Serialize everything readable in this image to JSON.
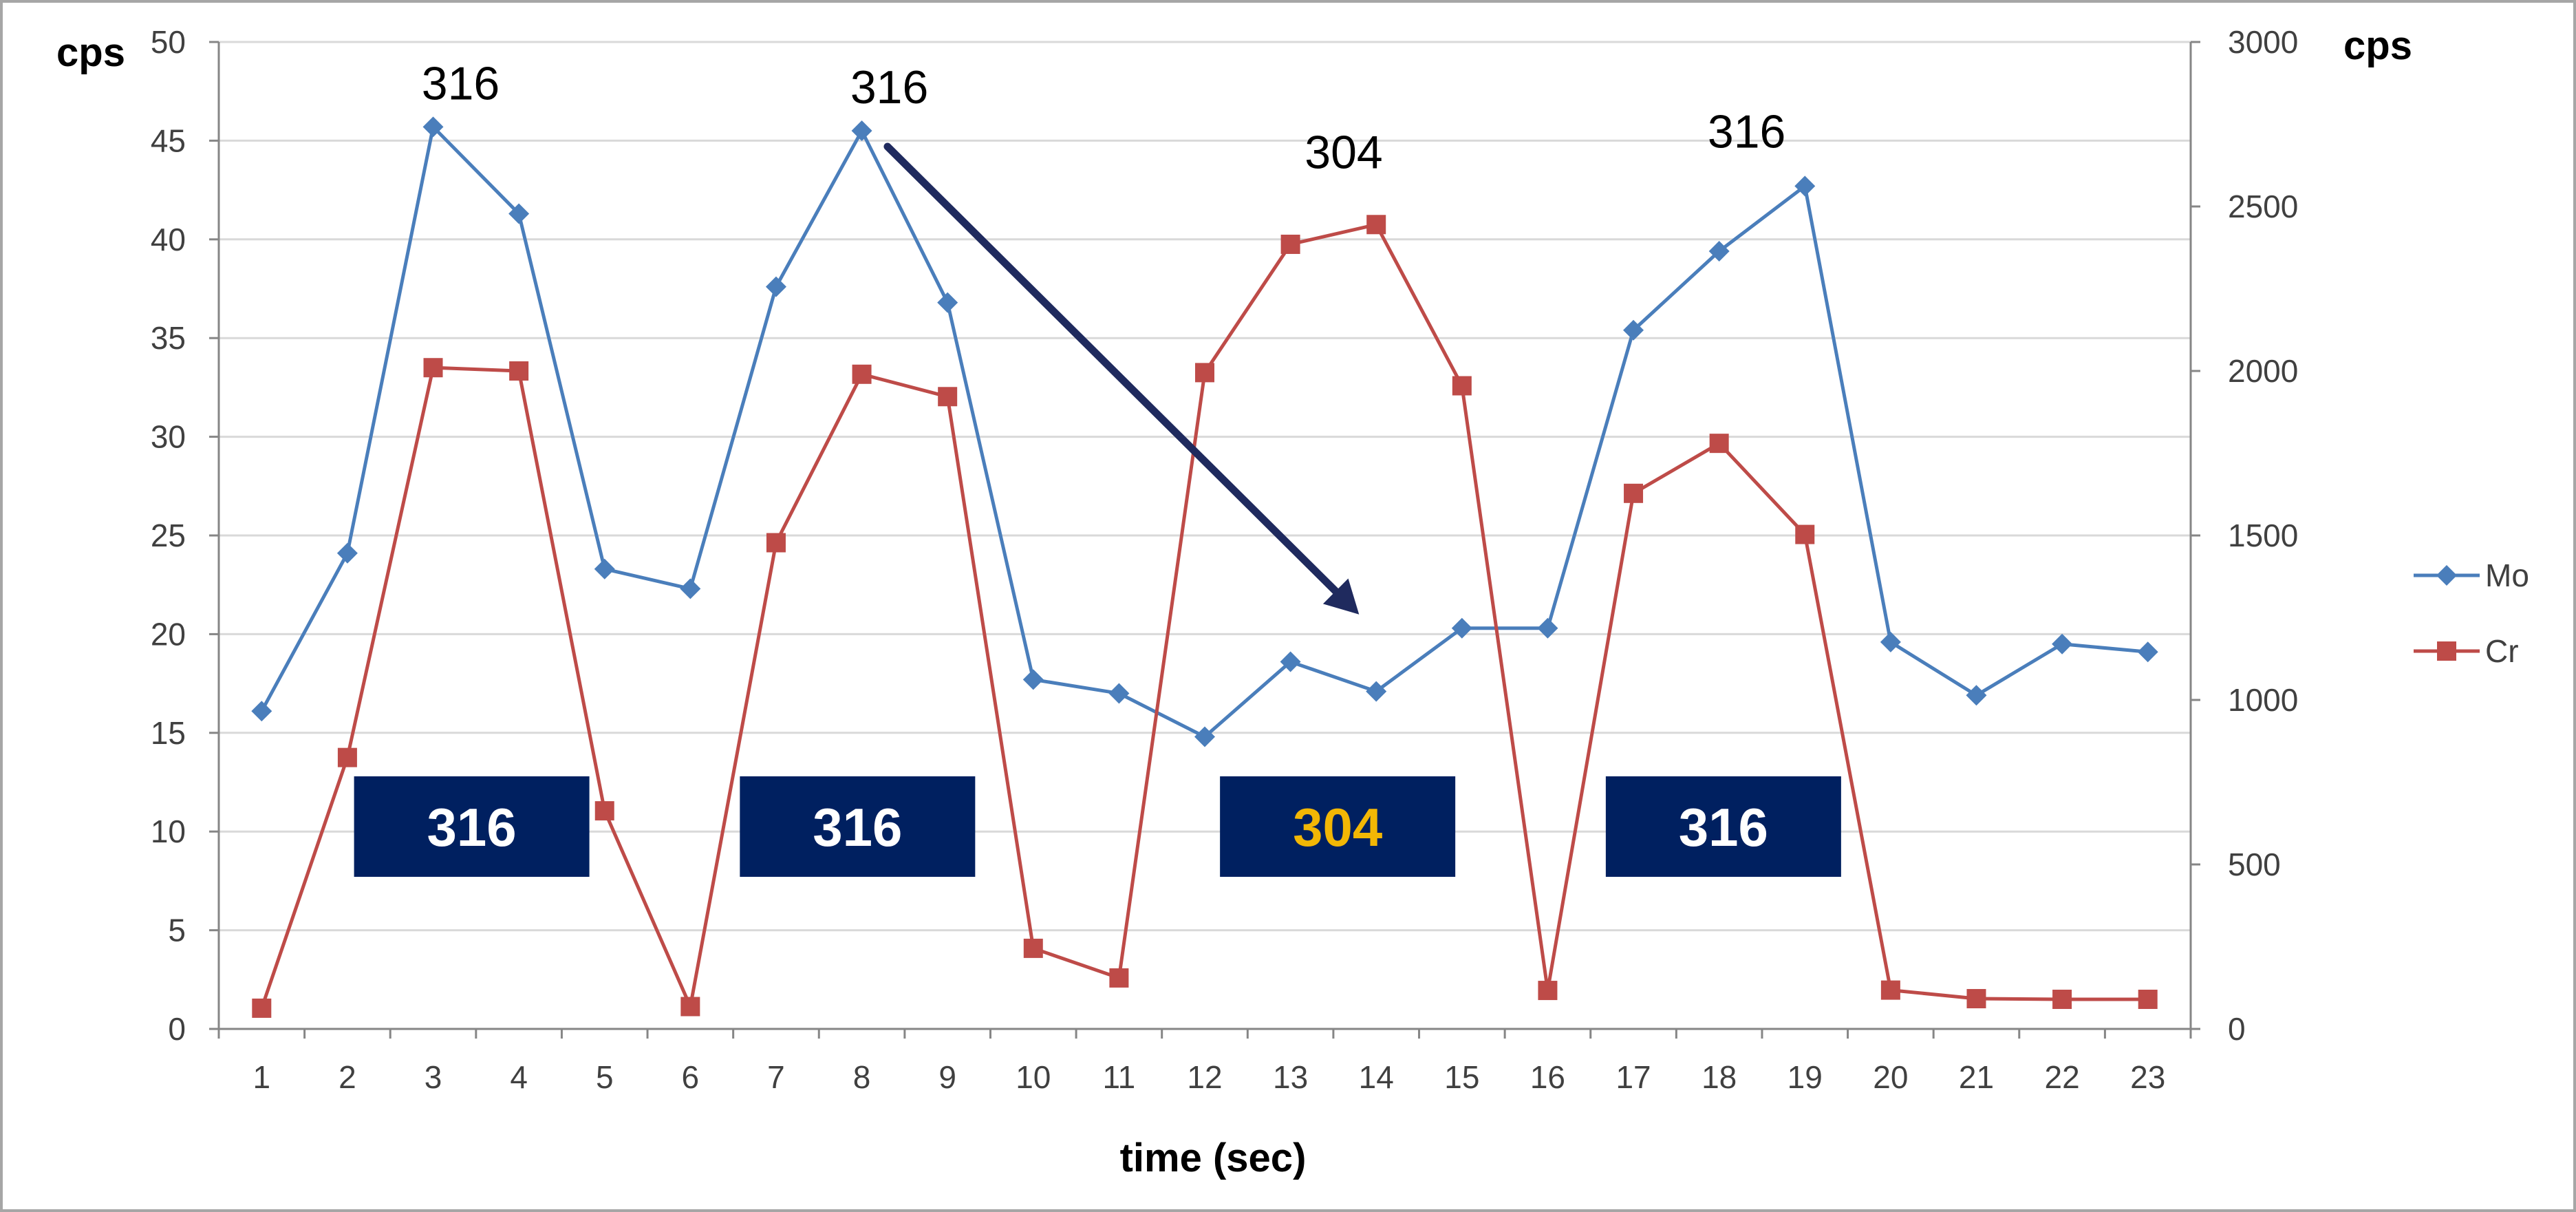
{
  "chart_data": {
    "type": "line",
    "categories": [
      "1",
      "2",
      "3",
      "4",
      "5",
      "6",
      "7",
      "8",
      "9",
      "10",
      "11",
      "12",
      "13",
      "14",
      "15",
      "16",
      "17",
      "18",
      "19",
      "20",
      "21",
      "22",
      "23"
    ],
    "series": [
      {
        "name": "Mo",
        "axis": "left",
        "color": "#4a7ebb",
        "marker": "diamond",
        "values": [
          16.1,
          24.1,
          45.7,
          41.3,
          23.3,
          22.3,
          37.6,
          45.5,
          36.8,
          17.7,
          17.0,
          14.8,
          18.6,
          17.1,
          20.3,
          20.3,
          35.4,
          39.4,
          42.7,
          19.6,
          16.9,
          19.5,
          19.1
        ]
      },
      {
        "name": "Cr",
        "axis": "right",
        "color": "#be4b48",
        "marker": "square",
        "values": [
          63,
          825,
          2010,
          2000,
          663,
          68,
          1478,
          1990,
          1922,
          245,
          155,
          1995,
          2385,
          2445,
          1955,
          117,
          1628,
          1780,
          1503,
          118,
          92,
          90,
          90
        ]
      }
    ],
    "left_axis": {
      "title": "cps",
      "min": 0,
      "max": 50,
      "step": 5,
      "ticks": [
        "0",
        "5",
        "10",
        "15",
        "20",
        "25",
        "30",
        "35",
        "40",
        "45",
        "50"
      ]
    },
    "right_axis": {
      "title": "cps",
      "min": 0,
      "max": 3000,
      "step": 500,
      "ticks": [
        "0",
        "500",
        "1000",
        "1500",
        "2000",
        "2500",
        "3000"
      ]
    },
    "xlabel": "time (sec)",
    "grid": "horizontal",
    "legend": "right",
    "annotations": {
      "peak_labels": [
        {
          "text": "316",
          "x": 3
        },
        {
          "text": "316",
          "x": 8
        },
        {
          "text": "304",
          "x": 13.3
        },
        {
          "text": "316",
          "x": 18
        }
      ],
      "boxes": [
        {
          "text": "316",
          "center_x": 3.45,
          "text_color": "#ffffff"
        },
        {
          "text": "316",
          "center_x": 7.95,
          "text_color": "#ffffff"
        },
        {
          "text": "304",
          "center_x": 13.55,
          "text_color": "#f2b705"
        },
        {
          "text": "316",
          "center_x": 18.05,
          "text_color": "#ffffff"
        }
      ],
      "box_color": "#002060",
      "arrow": {
        "from": [
          8.3,
          44.7
        ],
        "to": [
          13.8,
          21.0
        ],
        "color": "#1f2a5e"
      }
    }
  }
}
